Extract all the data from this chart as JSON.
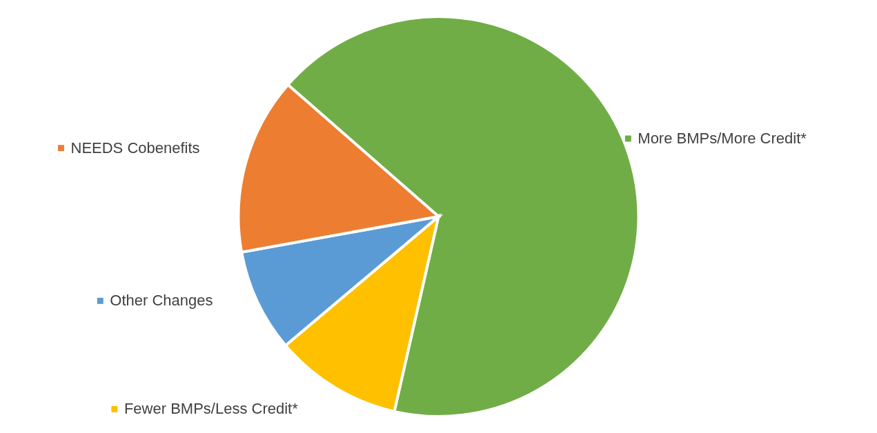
{
  "chart_data": {
    "type": "pie",
    "categories": [
      "More BMPs/More Credit*",
      "Fewer BMPs/Less Credit*",
      "Other Changes",
      "NEEDS Cobenefits"
    ],
    "values": [
      67.1,
      10.3,
      8.3,
      14.3
    ],
    "colors": [
      "#70ad47",
      "#ffc000",
      "#5b9bd5",
      "#ed7d31"
    ],
    "legend": "left"
  }
}
